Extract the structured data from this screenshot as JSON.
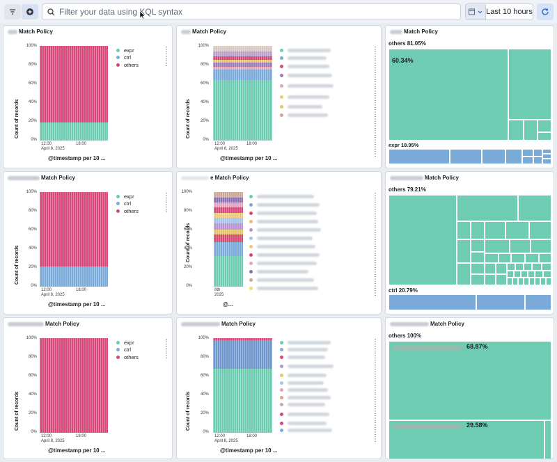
{
  "toolbar": {
    "search_placeholder": "Filter your data using KQL syntax",
    "time_range": "Last 10 hours"
  },
  "colors": {
    "expr": "#6dccb1",
    "ctrl": "#79aad9",
    "others": "#d6477a"
  },
  "panels": {
    "r1c1": {
      "title": "Match Policy",
      "legend": [
        "expr",
        "ctrl",
        "others"
      ],
      "ylabel": "Count of records",
      "yticks": [
        "100%",
        "80%",
        "60%",
        "40%",
        "20%",
        "0%"
      ],
      "xtick1": "12:00",
      "xtick1b": "April 8, 2025",
      "xtick2": "18:00",
      "xtitle": "@timestamp per 10 ..."
    },
    "r1c2": {
      "title": "Match Policy",
      "ylabel": "Count of records",
      "yticks": [
        "100%",
        "80%",
        "60%",
        "40%",
        "20%",
        "0%"
      ],
      "xtick1": "12:00",
      "xtick1b": "April 8, 2025",
      "xtick2": "18:00",
      "xtitle": "@timestamp per 10 ..."
    },
    "r1c3": {
      "title": "Match Policy",
      "group1": "others",
      "group1_pct": "81.05%",
      "group1_top": "60.34%",
      "group2": "expr",
      "group2_pct": "18.95%"
    },
    "r2c1": {
      "title": "Match Policy",
      "legend": [
        "expr",
        "ctrl",
        "others"
      ],
      "ylabel": "Count of records",
      "yticks": [
        "100%",
        "80%",
        "60%",
        "40%",
        "20%",
        "0%"
      ],
      "xtick1": "12:00",
      "xtick1b": "April 8, 2025",
      "xtick2": "18:00",
      "xtitle": "@timestamp per 10 ..."
    },
    "r2c2": {
      "title": "e Match Policy",
      "ylabel": "Count of records",
      "yticks": [
        "100%",
        "80%",
        "60%",
        "40%",
        "20%",
        "0%"
      ],
      "xtick1": "8th",
      "xtick1b": "2025",
      "xtitle": "@..."
    },
    "r2c3": {
      "title": "Match Policy",
      "group1": "others",
      "group1_pct": "79.21%",
      "group2": "ctrl",
      "group2_pct": "20.79%"
    },
    "r3c1": {
      "title": "Match Policy",
      "legend": [
        "expr",
        "ctrl",
        "others"
      ],
      "ylabel": "Count of records",
      "yticks": [
        "100%",
        "80%",
        "60%",
        "40%",
        "20%",
        "0%"
      ],
      "xtick1": "12:00",
      "xtick1b": "April 8, 2025",
      "xtick2": "18:00",
      "xtitle": "@timestamp per 10 ..."
    },
    "r3c2": {
      "title": "Match Policy",
      "ylabel": "Count of records",
      "yticks": [
        "100%",
        "80%",
        "60%",
        "40%",
        "20%",
        "0%"
      ],
      "xtick1": "12:00",
      "xtick1b": "April 8, 2025",
      "xtick2": "18:00",
      "xtitle": "@timestamp per 10 ..."
    },
    "r3c3": {
      "title": "Match Policy",
      "group1": "others",
      "group1_pct": "100%",
      "top_pct": "68.87%",
      "bottom_pct": "29.58%"
    }
  }
}
